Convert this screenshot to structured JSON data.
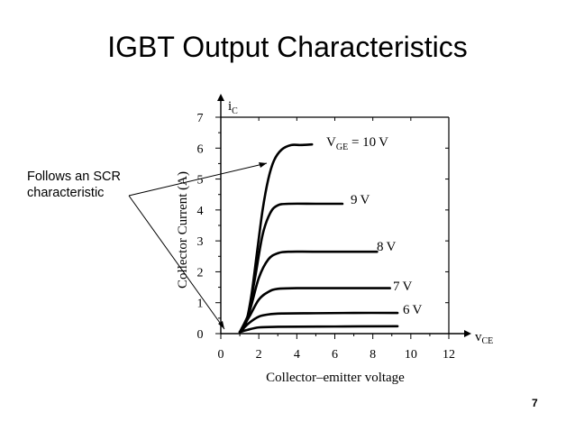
{
  "slide": {
    "title": "IGBT Output Characteristics",
    "page_number": "7"
  },
  "annotation": {
    "lines": [
      "Follows an SCR",
      "characteristic"
    ]
  },
  "chart_data": {
    "type": "line",
    "xlabel": "Collector–emitter voltage",
    "ylabel": "Collector Current (A)",
    "x_axis_symbol": "v",
    "x_axis_subscript": "CE",
    "y_axis_symbol": "i",
    "y_axis_subscript": "C",
    "xlim": [
      0,
      12
    ],
    "ylim": [
      0,
      7
    ],
    "x_ticks": [
      0,
      2,
      4,
      6,
      8,
      10,
      12
    ],
    "y_ticks": [
      0,
      1,
      2,
      3,
      4,
      5,
      6,
      7
    ],
    "grid": false,
    "series": [
      {
        "name": "VGE = 10 V",
        "label_main": "V",
        "label_sub": "GE",
        "label_rest": " = 10 V",
        "points": [
          [
            1,
            0.05
          ],
          [
            1.3,
            0.3
          ],
          [
            1.6,
            1.2
          ],
          [
            1.9,
            2.6
          ],
          [
            2.2,
            4.0
          ],
          [
            2.5,
            5.0
          ],
          [
            2.8,
            5.6
          ],
          [
            3.2,
            5.95
          ],
          [
            3.7,
            6.1
          ],
          [
            4.2,
            6.1
          ],
          [
            4.8,
            6.12
          ]
        ]
      },
      {
        "name": "9 V",
        "label_rest": "9 V",
        "points": [
          [
            1,
            0.05
          ],
          [
            1.4,
            0.5
          ],
          [
            1.8,
            1.8
          ],
          [
            2.2,
            3.2
          ],
          [
            2.6,
            3.9
          ],
          [
            3.0,
            4.15
          ],
          [
            3.6,
            4.2
          ],
          [
            5,
            4.2
          ],
          [
            6.4,
            4.2
          ]
        ]
      },
      {
        "name": "8 V",
        "label_rest": "8 V",
        "points": [
          [
            1,
            0.05
          ],
          [
            1.5,
            0.7
          ],
          [
            2.0,
            1.8
          ],
          [
            2.5,
            2.4
          ],
          [
            3.0,
            2.6
          ],
          [
            3.6,
            2.65
          ],
          [
            5,
            2.65
          ],
          [
            8,
            2.65
          ],
          [
            8,
            2.65
          ]
        ]
      },
      {
        "name": "7 V",
        "label_rest": "7 V",
        "points": [
          [
            1,
            0.05
          ],
          [
            1.5,
            0.55
          ],
          [
            2.0,
            1.1
          ],
          [
            2.5,
            1.35
          ],
          [
            3.0,
            1.45
          ],
          [
            4,
            1.47
          ],
          [
            6,
            1.47
          ],
          [
            8.9,
            1.47
          ]
        ]
      },
      {
        "name": "6 V",
        "label_rest": "6 V",
        "points": [
          [
            1,
            0.05
          ],
          [
            1.5,
            0.35
          ],
          [
            2.0,
            0.55
          ],
          [
            2.5,
            0.62
          ],
          [
            3.2,
            0.65
          ],
          [
            5,
            0.66
          ],
          [
            7,
            0.67
          ],
          [
            9.3,
            0.67
          ]
        ]
      },
      {
        "name": "base",
        "label_rest": "",
        "points": [
          [
            1,
            0.05
          ],
          [
            1.4,
            0.12
          ],
          [
            2.0,
            0.2
          ],
          [
            3,
            0.22
          ],
          [
            6,
            0.23
          ],
          [
            9.3,
            0.24
          ]
        ]
      }
    ]
  }
}
